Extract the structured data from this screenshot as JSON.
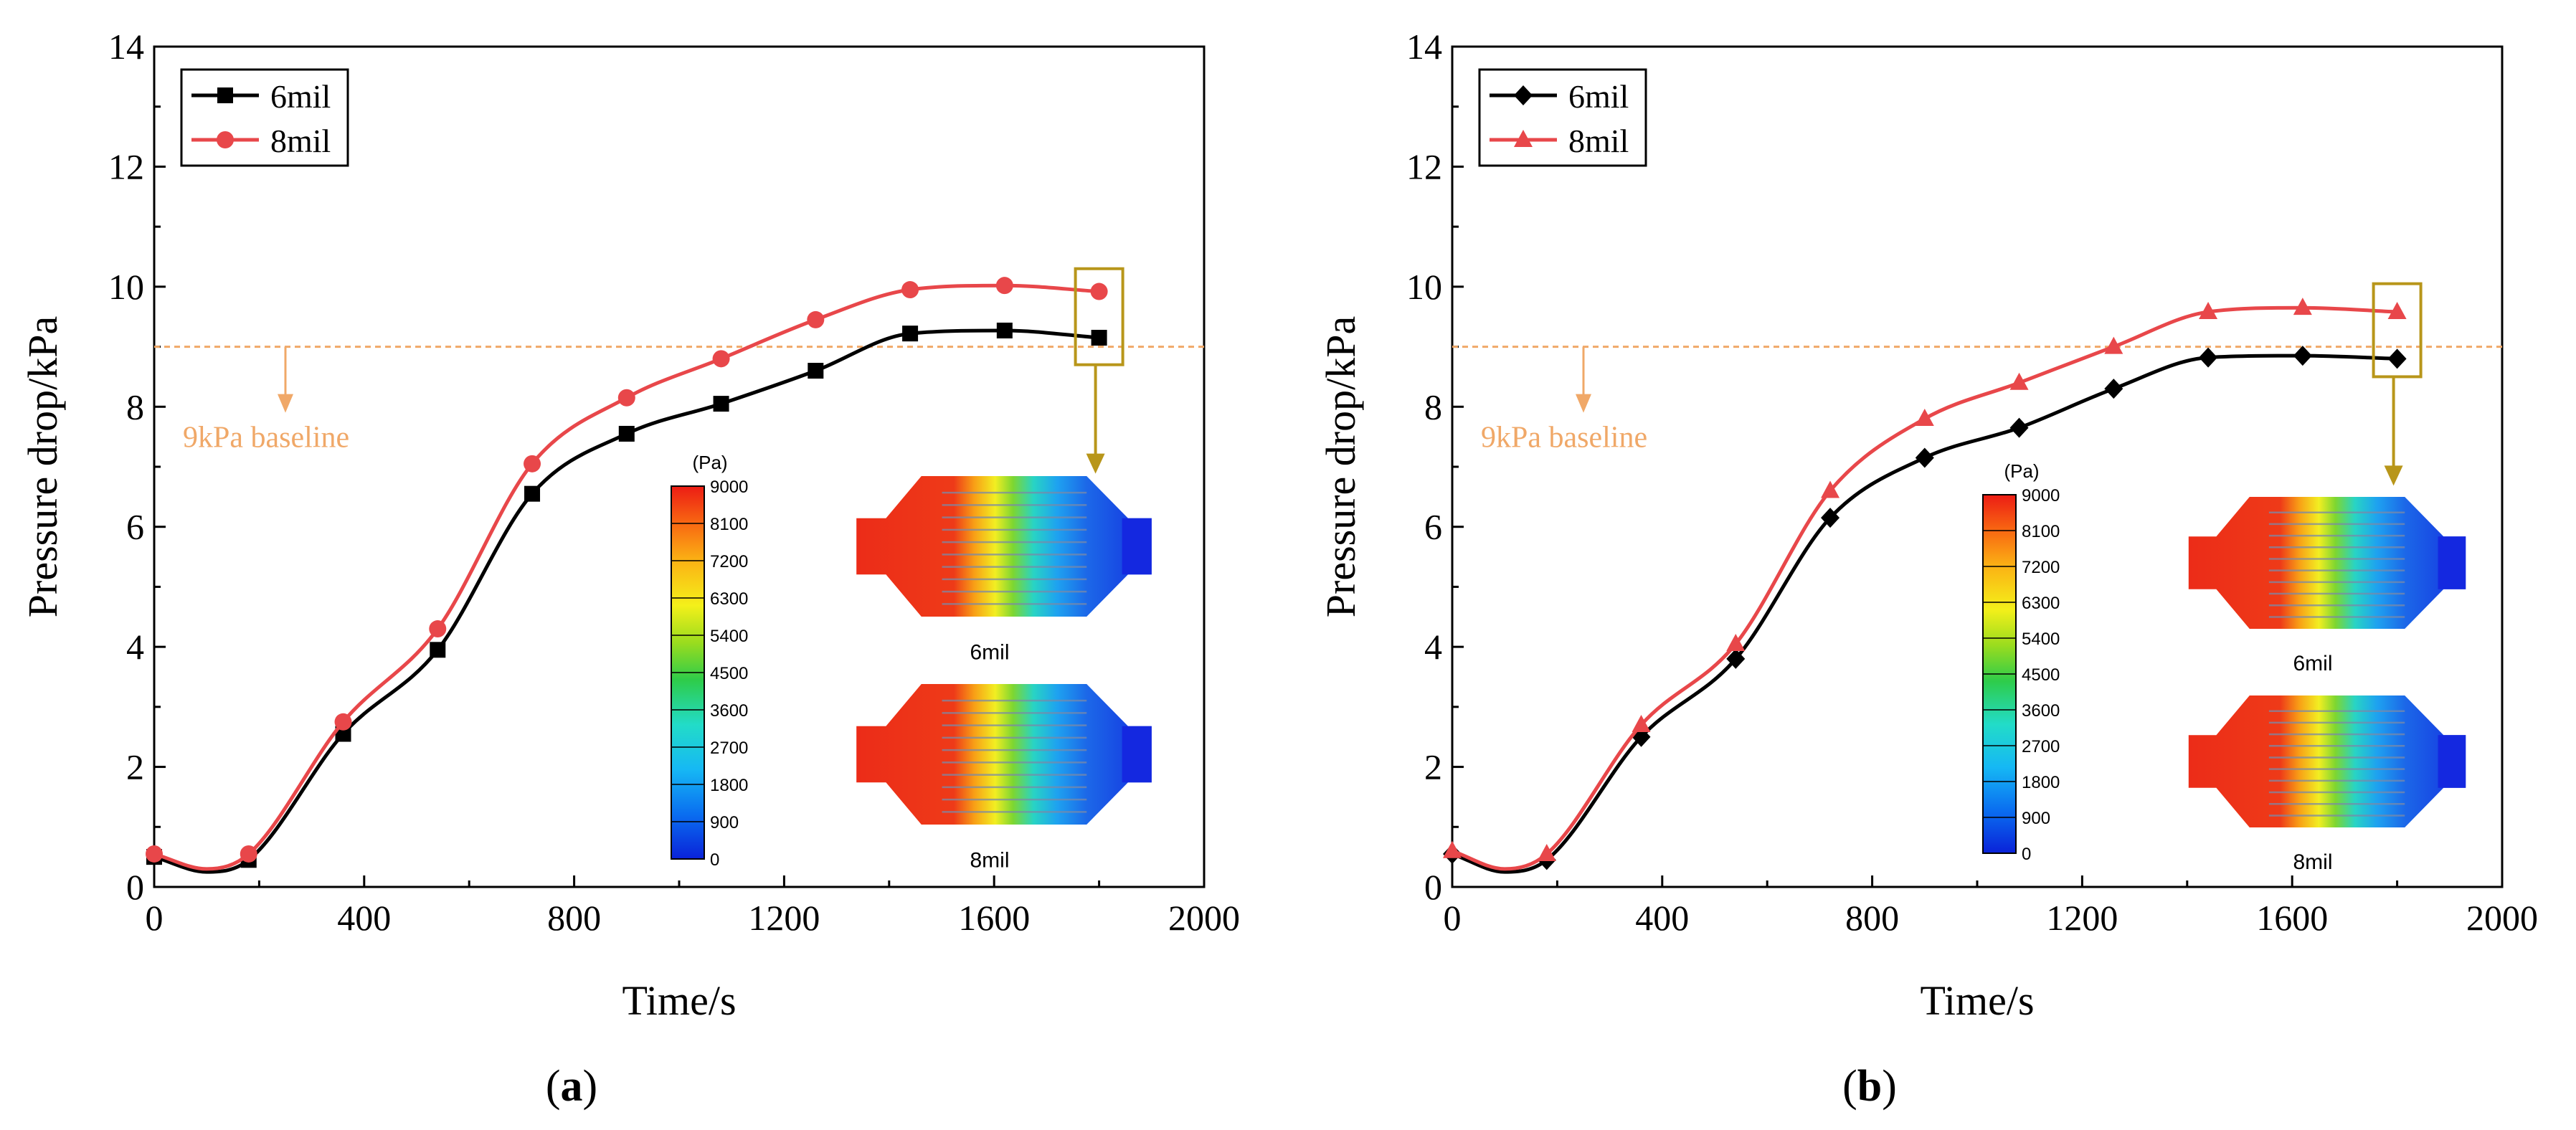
{
  "chart_data": [
    {
      "type": "line",
      "panel_label": "(a)",
      "xlabel": "Time/s",
      "ylabel": "Pressure drop/kPa",
      "xlim": [
        0,
        2000
      ],
      "ylim": [
        0,
        14
      ],
      "xticks": [
        0,
        400,
        800,
        1200,
        1600,
        2000
      ],
      "yticks": [
        0,
        2,
        4,
        6,
        8,
        10,
        12,
        14
      ],
      "legend_position": "top-left",
      "series": [
        {
          "name": "6mil",
          "color": "#000000",
          "marker": "square",
          "x": [
            0,
            100,
            180,
            360,
            540,
            720,
            900,
            1080,
            1260,
            1440,
            1620,
            1800
          ],
          "y": [
            0.5,
            0.25,
            0.45,
            2.55,
            3.95,
            6.55,
            7.55,
            8.05,
            8.6,
            9.22,
            9.27,
            9.15
          ],
          "marker_indices": [
            0,
            2,
            3,
            4,
            5,
            6,
            7,
            8,
            9,
            10,
            11
          ]
        },
        {
          "name": "8mil",
          "color": "#e8474a",
          "marker": "circle",
          "x": [
            0,
            100,
            180,
            360,
            540,
            720,
            900,
            1080,
            1260,
            1440,
            1620,
            1800
          ],
          "y": [
            0.55,
            0.3,
            0.55,
            2.75,
            4.3,
            7.05,
            8.15,
            8.8,
            9.45,
            9.95,
            10.02,
            9.92
          ],
          "marker_indices": [
            0,
            2,
            3,
            4,
            5,
            6,
            7,
            8,
            9,
            10,
            11
          ]
        }
      ],
      "baseline": {
        "value": 9,
        "label": "9kPa baseline",
        "color": "#f0a868"
      },
      "highlight": {
        "x": 1800,
        "y_range": [
          8.7,
          10.3
        ],
        "color": "#b8961a"
      },
      "contour_inset": {
        "unit": "(Pa)",
        "scale_ticks": [
          "9000",
          "8100",
          "7200",
          "6300",
          "5400",
          "4500",
          "3600",
          "2700",
          "1800",
          "900",
          "0"
        ],
        "labels": [
          "6mil",
          "8mil"
        ]
      }
    },
    {
      "type": "line",
      "panel_label": "(b)",
      "xlabel": "Time/s",
      "ylabel": "Pressure drop/kPa",
      "xlim": [
        0,
        2000
      ],
      "ylim": [
        0,
        14
      ],
      "xticks": [
        0,
        400,
        800,
        1200,
        1600,
        2000
      ],
      "yticks": [
        0,
        2,
        4,
        6,
        8,
        10,
        12,
        14
      ],
      "legend_position": "top-left",
      "series": [
        {
          "name": "6mil",
          "color": "#000000",
          "marker": "diamond",
          "x": [
            0,
            100,
            180,
            360,
            540,
            720,
            900,
            1080,
            1260,
            1440,
            1620,
            1800
          ],
          "y": [
            0.55,
            0.25,
            0.45,
            2.5,
            3.8,
            6.15,
            7.15,
            7.65,
            8.3,
            8.82,
            8.85,
            8.8
          ],
          "marker_indices": [
            0,
            2,
            3,
            4,
            5,
            6,
            7,
            8,
            9,
            10,
            11
          ]
        },
        {
          "name": "8mil",
          "color": "#e8474a",
          "marker": "triangle",
          "x": [
            0,
            100,
            180,
            360,
            540,
            720,
            900,
            1080,
            1260,
            1440,
            1620,
            1800
          ],
          "y": [
            0.6,
            0.3,
            0.55,
            2.7,
            4.05,
            6.6,
            7.8,
            8.4,
            9.0,
            9.58,
            9.65,
            9.58
          ],
          "marker_indices": [
            0,
            2,
            3,
            4,
            5,
            6,
            7,
            8,
            9,
            10,
            11
          ]
        }
      ],
      "baseline": {
        "value": 9,
        "label": "9kPa baseline",
        "color": "#f0a868"
      },
      "highlight": {
        "x": 1800,
        "y_range": [
          8.5,
          10.05
        ],
        "color": "#b8961a"
      },
      "contour_inset": {
        "unit": "(Pa)",
        "scale_ticks": [
          "9000",
          "8100",
          "7200",
          "6300",
          "5400",
          "4500",
          "3600",
          "2700",
          "1800",
          "900",
          "0"
        ],
        "labels": [
          "6mil",
          "8mil"
        ]
      }
    }
  ]
}
